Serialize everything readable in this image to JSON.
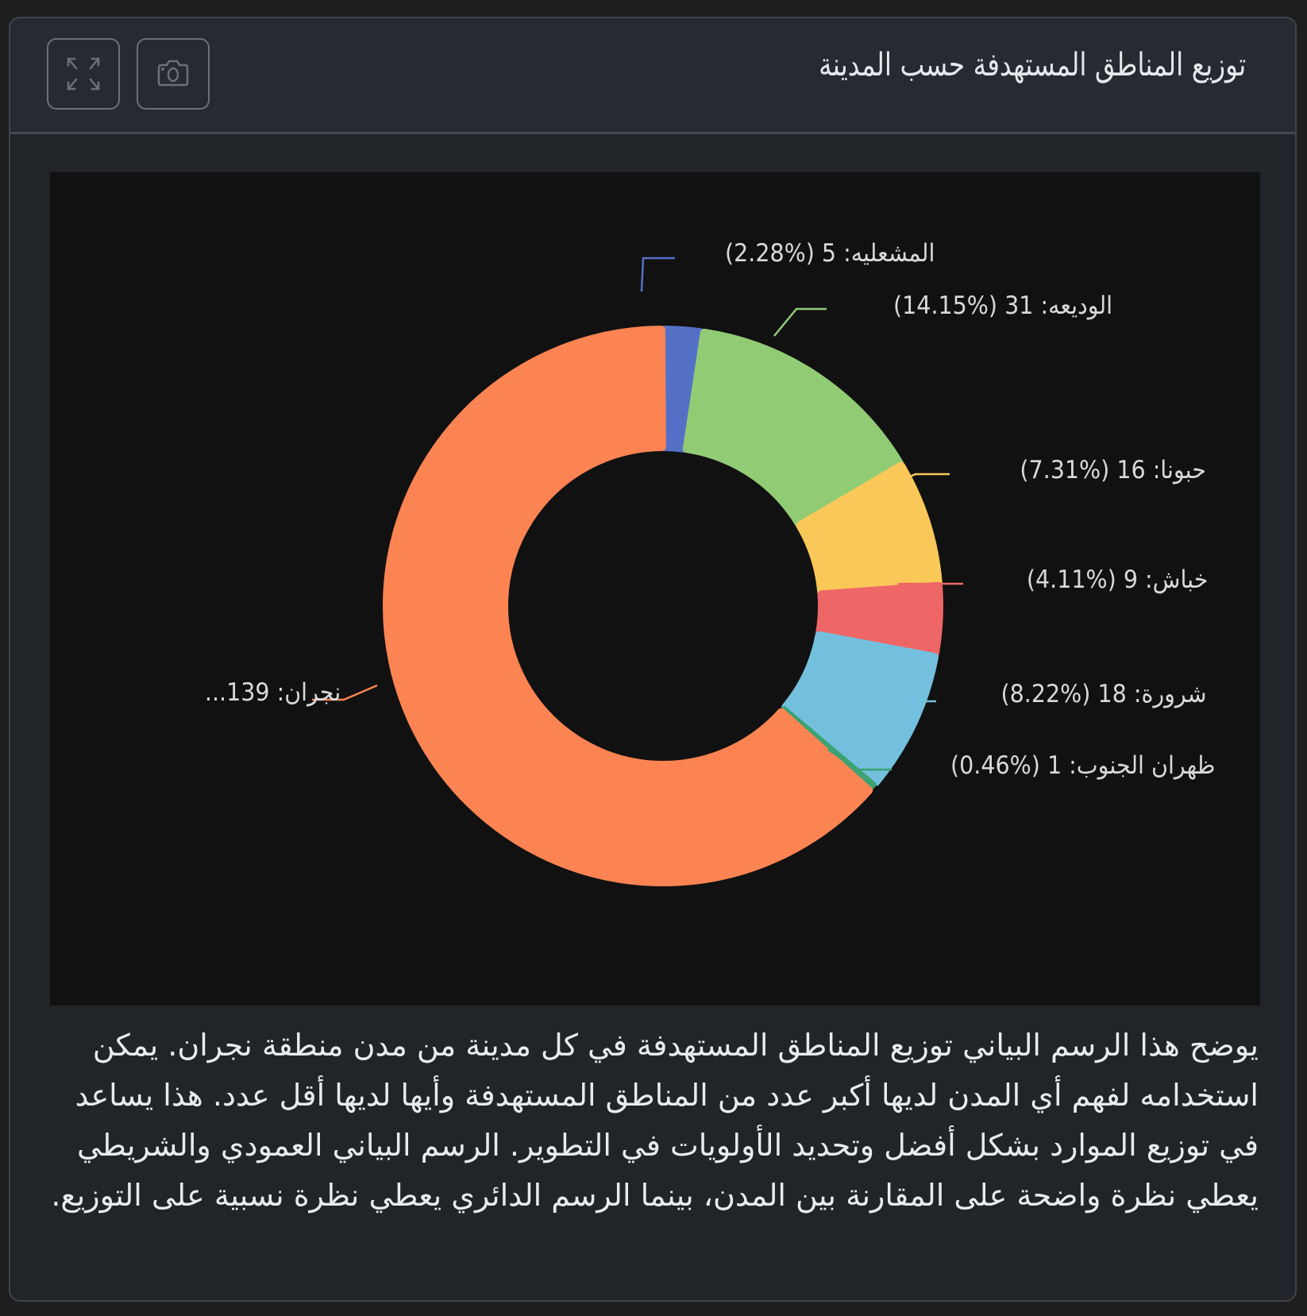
{
  "card": {
    "title": "توزيع المناطق المستهدفة حسب المدينة",
    "toolbar": {
      "fullscreen_icon": "expand-arrows-icon",
      "screenshot_icon": "camera-icon"
    },
    "description": "يوضح هذا الرسم البياني توزيع المناطق المستهدفة في كل مدينة من مدن منطقة نجران. يمكن استخدامه لفهم أي المدن لديها أكبر عدد من المناطق المستهدفة وأيها لديها أقل عدد. هذا يساعد في توزيع الموارد بشكل أفضل وتحديد الأولويات في التطوير. الرسم البياني العمودي والشريطي يعطي نظرة واضحة على المقارنة بين المدن، بينما الرسم الدائري يعطي نظرة نسبية على التوزيع."
  },
  "labels": {
    "mishaliya": "المشعليه: 5 (%2.28)",
    "wadiah": "الوديعه: 31 (%14.15)",
    "hubuna": "حبونا: 16 (%7.31)",
    "khubash": "خباش: 9 (%4.11)",
    "sharurah": "شرورة: 18 (%8.22)",
    "dhahran": "ظهران الجنوب: 1 (%0.46)",
    "najran": "نجران: 139..."
  },
  "colors": {
    "mishaliya": "#5470c6",
    "wadiah": "#91cc75",
    "hubuna": "#fac858",
    "khubash": "#ee6666",
    "sharurah": "#73c0de",
    "dhahran": "#3ba272",
    "najran": "#fc8452",
    "background": "#111111",
    "card": "#212429"
  },
  "chart_data": {
    "type": "pie",
    "subtype": "donut",
    "title": "توزيع المناطق المستهدفة حسب المدينة",
    "categories": [
      "المشعليه",
      "الوديعه",
      "حبونا",
      "خباش",
      "شرورة",
      "ظهران الجنوب",
      "نجران"
    ],
    "values": [
      5,
      31,
      16,
      9,
      18,
      1,
      139
    ],
    "percentages": [
      2.28,
      14.15,
      7.31,
      4.11,
      8.22,
      0.46,
      63.47
    ],
    "colors": [
      "#5470c6",
      "#91cc75",
      "#fac858",
      "#ee6666",
      "#73c0de",
      "#3ba272",
      "#fc8452"
    ],
    "label_format": "{name}: {value} (%{percent})",
    "legend": "none",
    "start_angle": "top, clockwise"
  }
}
